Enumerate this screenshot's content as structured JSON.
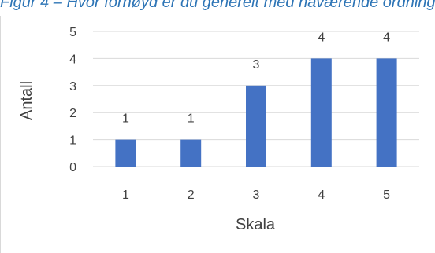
{
  "caption": "Figur 4 – Hvor fornøyd er du generelt med nåværende ordning?",
  "chart_data": {
    "type": "bar",
    "categories": [
      "1",
      "2",
      "3",
      "4",
      "5"
    ],
    "values": [
      1,
      1,
      3,
      4,
      4
    ],
    "data_labels": [
      "1",
      "1",
      "3",
      "4",
      "4"
    ],
    "y_ticks": [
      "0",
      "1",
      "2",
      "3",
      "4",
      "5"
    ],
    "xlabel": "Skala",
    "ylabel": "Antall",
    "ylim": [
      0,
      5
    ],
    "grid": "horizontal",
    "legend": "none",
    "bar_color": "#4472c4",
    "grid_color": "#d9d9d9"
  }
}
